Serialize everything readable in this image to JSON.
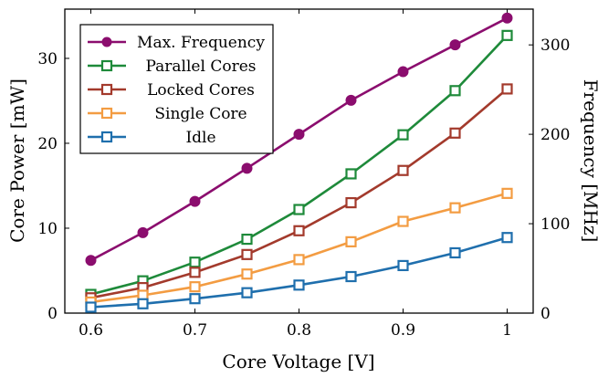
{
  "chart_data": {
    "type": "line",
    "xlabel": "Core Voltage [V]",
    "ylabel": "Core Power [mW]",
    "y2label": "Frequency [MHz]",
    "x": [
      0.6,
      0.65,
      0.7,
      0.75,
      0.8,
      0.85,
      0.9,
      0.95,
      1.0
    ],
    "xlim": [
      0.575,
      1.025
    ],
    "ylim": [
      0,
      35.8
    ],
    "y2lim": [
      0,
      340
    ],
    "x_ticks": [
      0.6,
      0.7,
      0.8,
      0.9,
      1
    ],
    "x_tick_labels": [
      "0.6",
      "0.7",
      "0.8",
      "0.9",
      "1"
    ],
    "y_ticks": [
      0,
      10,
      20,
      30
    ],
    "y_tick_labels": [
      "0",
      "10",
      "20",
      "30"
    ],
    "y2_ticks": [
      0,
      100,
      200,
      300
    ],
    "y2_tick_labels": [
      "0",
      "100",
      "200",
      "300"
    ],
    "grid": false,
    "legend_position": "top-left",
    "series": [
      {
        "name": "Max. Frequency",
        "axis": "right",
        "marker": "circle",
        "color": "#8b0d6e",
        "values": [
          59,
          90,
          125,
          162,
          200,
          238,
          270,
          300,
          330
        ]
      },
      {
        "name": "Parallel Cores",
        "axis": "left",
        "marker": "square",
        "color": "#1e8a3a",
        "values": [
          2.2,
          3.8,
          6.0,
          8.7,
          12.2,
          16.4,
          21.0,
          26.2,
          32.7
        ]
      },
      {
        "name": "Locked Cores",
        "axis": "left",
        "marker": "square",
        "color": "#a33a2c",
        "values": [
          1.8,
          3.0,
          4.8,
          6.9,
          9.7,
          13.0,
          16.8,
          21.2,
          26.4
        ]
      },
      {
        "name": "Single Core",
        "axis": "left",
        "marker": "square",
        "color": "#f39c42",
        "values": [
          1.3,
          2.1,
          3.1,
          4.6,
          6.3,
          8.4,
          10.8,
          12.4,
          14.1
        ]
      },
      {
        "name": "Idle",
        "axis": "left",
        "marker": "square",
        "color": "#1f6fad",
        "values": [
          0.7,
          1.1,
          1.7,
          2.4,
          3.3,
          4.3,
          5.6,
          7.1,
          8.9
        ]
      }
    ]
  }
}
